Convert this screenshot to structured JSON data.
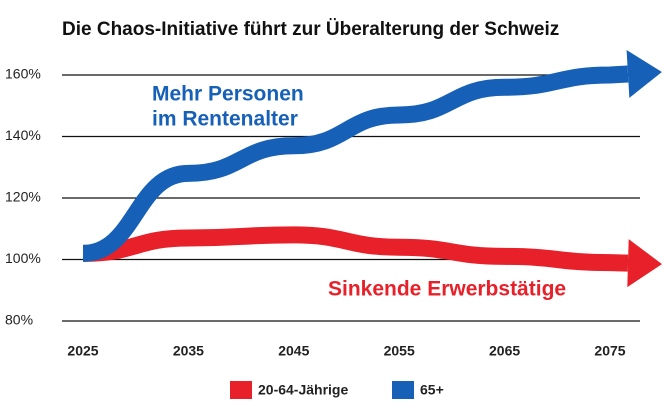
{
  "chart_data": {
    "type": "line",
    "title": "Die Chaos-Initiative führt zur Überalterung der Schweiz",
    "x": [
      2025,
      2035,
      2045,
      2055,
      2065,
      2075
    ],
    "series": [
      {
        "name": "20-64-Jährige",
        "color": "#e8202a",
        "values": [
          102,
          107,
          108,
          104,
          101,
          99
        ]
      },
      {
        "name": "65+",
        "color": "#1660b8",
        "values": [
          102,
          128,
          137,
          147,
          156,
          160
        ]
      }
    ],
    "xlim": [
      2025,
      2075
    ],
    "xticks": [
      2025,
      2035,
      2045,
      2055,
      2065,
      2075
    ],
    "ylim": [
      80,
      160
    ],
    "yticks": [
      {
        "value": 80,
        "label": "80%"
      },
      {
        "value": 100,
        "label": "100%"
      },
      {
        "value": 120,
        "label": "120%"
      },
      {
        "value": 140,
        "label": "140%"
      },
      {
        "value": 160,
        "label": "160%"
      }
    ],
    "grid": true,
    "annotations": [
      "Mehr Personen",
      "im Rentenalter",
      "Sinkende Erwerbstätige"
    ],
    "legend": "bottom"
  }
}
